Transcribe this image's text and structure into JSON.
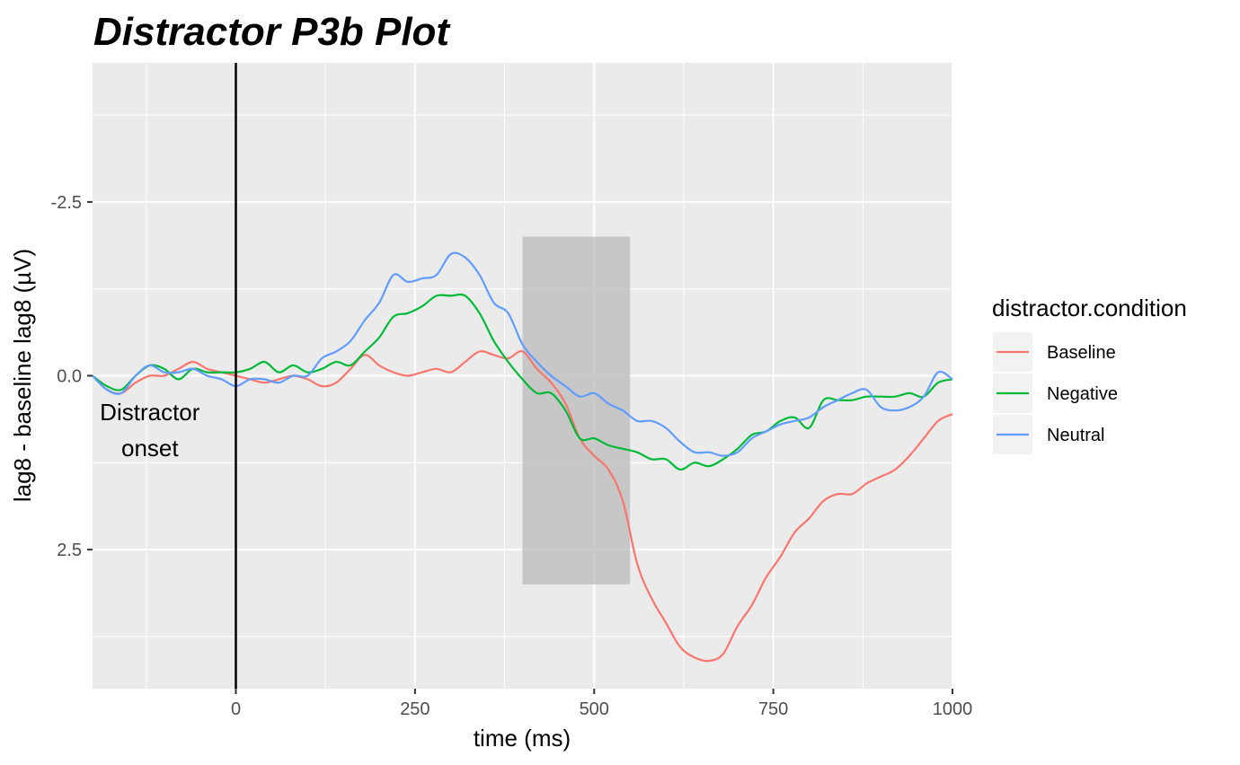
{
  "chart_data": {
    "type": "line",
    "title": "Distractor P3b Plot",
    "xlabel": "time (ms)",
    "ylabel": "lag8 - baseline lag8 (µV)",
    "xlim": [
      -200,
      1000
    ],
    "ylim": [
      -4.5,
      4.5
    ],
    "y_reversed": true,
    "grid": true,
    "x_ticks": [
      0,
      250,
      500,
      750,
      1000
    ],
    "x_tick_labels": [
      "0",
      "250",
      "500",
      "750",
      "1000"
    ],
    "y_ticks": [
      -2.5,
      0,
      2.5
    ],
    "y_tick_labels": [
      "-2.5",
      "0.0",
      "2.5"
    ],
    "vline": {
      "x": 0
    },
    "annotation": {
      "text_line1": "Distractor",
      "text_line2": "onset",
      "x": -120,
      "y": 1.0
    },
    "highlight": {
      "x0": 400,
      "x1": 550,
      "y0": -2.0,
      "y1": 3.0
    },
    "legend_title": "distractor.condition",
    "legend_position": "right",
    "series": [
      {
        "name": "Baseline",
        "color": "#F8766D",
        "x": [
          -200,
          -180,
          -160,
          -140,
          -120,
          -100,
          -80,
          -60,
          -40,
          -20,
          0,
          20,
          40,
          60,
          80,
          100,
          120,
          140,
          160,
          180,
          200,
          220,
          240,
          260,
          280,
          300,
          320,
          340,
          360,
          380,
          400,
          420,
          440,
          460,
          480,
          500,
          520,
          540,
          560,
          580,
          600,
          620,
          640,
          660,
          680,
          700,
          720,
          740,
          760,
          780,
          800,
          820,
          840,
          860,
          880,
          900,
          920,
          940,
          960,
          980,
          1000
        ],
        "y": [
          0.0,
          0.2,
          0.25,
          0.1,
          0.0,
          0.0,
          -0.1,
          -0.2,
          -0.1,
          -0.05,
          0.0,
          0.05,
          0.1,
          0.05,
          0.0,
          0.05,
          0.15,
          0.1,
          -0.1,
          -0.3,
          -0.15,
          -0.05,
          0.0,
          -0.05,
          -0.1,
          -0.05,
          -0.2,
          -0.35,
          -0.3,
          -0.25,
          -0.35,
          -0.1,
          0.1,
          0.4,
          0.9,
          1.15,
          1.35,
          1.8,
          2.7,
          3.2,
          3.55,
          3.9,
          4.05,
          4.1,
          4.0,
          3.6,
          3.3,
          2.9,
          2.6,
          2.25,
          2.05,
          1.8,
          1.7,
          1.7,
          1.55,
          1.45,
          1.35,
          1.15,
          0.9,
          0.65,
          0.55
        ]
      },
      {
        "name": "Negative",
        "color": "#00BA38",
        "x": [
          -200,
          -180,
          -160,
          -140,
          -120,
          -100,
          -80,
          -60,
          -40,
          -20,
          0,
          20,
          40,
          60,
          80,
          100,
          120,
          140,
          160,
          180,
          200,
          220,
          240,
          260,
          280,
          300,
          320,
          340,
          360,
          380,
          400,
          420,
          440,
          460,
          480,
          500,
          520,
          540,
          560,
          580,
          600,
          620,
          640,
          660,
          680,
          700,
          720,
          740,
          760,
          780,
          800,
          820,
          840,
          860,
          880,
          900,
          920,
          940,
          960,
          980,
          1000
        ],
        "y": [
          0.0,
          0.15,
          0.2,
          0.0,
          -0.15,
          -0.1,
          0.05,
          -0.1,
          -0.05,
          -0.05,
          -0.05,
          -0.1,
          -0.2,
          -0.05,
          -0.15,
          -0.05,
          -0.1,
          -0.2,
          -0.15,
          -0.35,
          -0.55,
          -0.85,
          -0.9,
          -1.0,
          -1.15,
          -1.15,
          -1.15,
          -0.9,
          -0.5,
          -0.2,
          0.05,
          0.25,
          0.25,
          0.5,
          0.9,
          0.9,
          1.0,
          1.05,
          1.1,
          1.2,
          1.2,
          1.35,
          1.25,
          1.3,
          1.2,
          1.05,
          0.85,
          0.8,
          0.65,
          0.6,
          0.75,
          0.35,
          0.35,
          0.35,
          0.3,
          0.3,
          0.3,
          0.25,
          0.3,
          0.1,
          0.05
        ]
      },
      {
        "name": "Neutral",
        "color": "#619CFF",
        "x": [
          -200,
          -180,
          -160,
          -140,
          -120,
          -100,
          -80,
          -60,
          -40,
          -20,
          0,
          20,
          40,
          60,
          80,
          100,
          120,
          140,
          160,
          180,
          200,
          220,
          240,
          260,
          280,
          300,
          320,
          340,
          360,
          380,
          400,
          420,
          440,
          460,
          480,
          500,
          520,
          540,
          560,
          580,
          600,
          620,
          640,
          660,
          680,
          700,
          720,
          740,
          760,
          780,
          800,
          820,
          840,
          860,
          880,
          900,
          920,
          940,
          960,
          980,
          1000
        ],
        "y": [
          0.0,
          0.2,
          0.25,
          0.0,
          -0.15,
          -0.05,
          -0.05,
          -0.1,
          0.0,
          0.05,
          0.15,
          0.05,
          0.05,
          0.1,
          0.0,
          0.0,
          -0.25,
          -0.35,
          -0.5,
          -0.8,
          -1.05,
          -1.45,
          -1.35,
          -1.4,
          -1.45,
          -1.75,
          -1.7,
          -1.45,
          -1.05,
          -0.9,
          -0.45,
          -0.2,
          0.0,
          0.15,
          0.3,
          0.25,
          0.4,
          0.5,
          0.65,
          0.65,
          0.75,
          0.95,
          1.1,
          1.1,
          1.15,
          1.1,
          0.9,
          0.8,
          0.7,
          0.65,
          0.6,
          0.45,
          0.35,
          0.25,
          0.2,
          0.45,
          0.5,
          0.45,
          0.3,
          -0.05,
          0.05
        ]
      }
    ]
  }
}
